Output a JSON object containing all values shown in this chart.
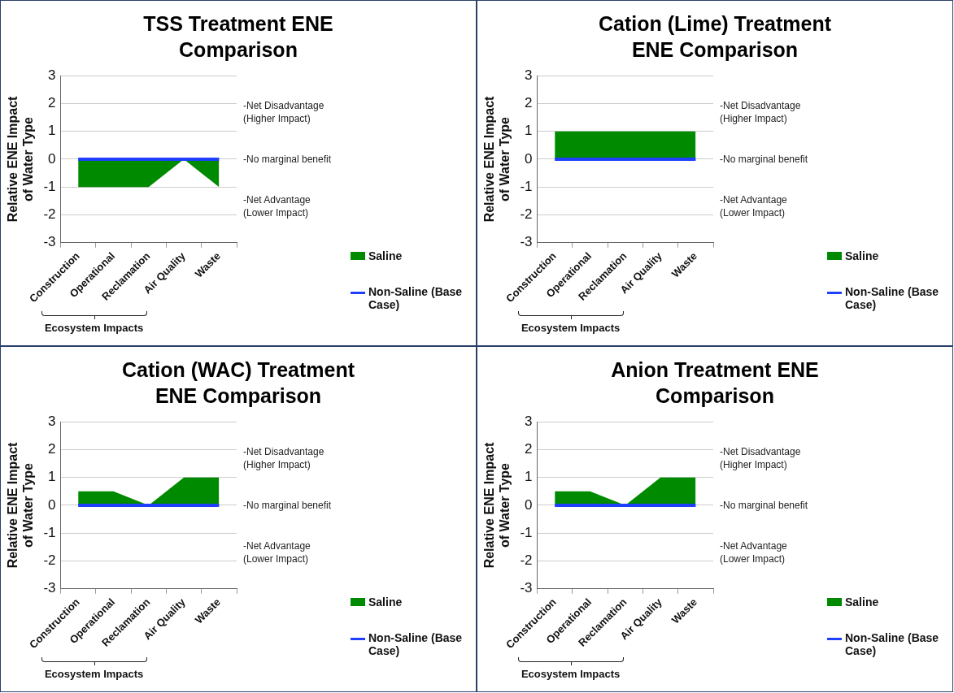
{
  "chart_data": [
    {
      "type": "area",
      "title": "TSS Treatment ENE Comparison",
      "ylabel": "Relative ENE Impact of Water Type",
      "categories": [
        "Construction",
        "Operational",
        "Reclamation",
        "Air Quality",
        "Waste"
      ],
      "series": [
        {
          "name": "Saline",
          "type": "area",
          "color": "#008a00",
          "values": [
            -1,
            -1,
            -1,
            0,
            -1
          ]
        },
        {
          "name": "Non-Saline (Base Case)",
          "type": "line",
          "color": "#1f3fff",
          "values": [
            0,
            0,
            0,
            0,
            0
          ]
        }
      ],
      "ylim": [
        -3,
        3
      ],
      "yticks": [
        -3,
        -2,
        -1,
        0,
        1,
        2,
        3
      ],
      "grid": "y",
      "legend": "right",
      "annotations": [
        "-Net Disadvantage (Higher Impact)",
        "-No marginal benefit",
        "-Net Advantage (Lower Impact)",
        "Ecosystem Impacts"
      ]
    },
    {
      "type": "area",
      "title": "Cation (Lime) Treatment ENE Comparison",
      "ylabel": "Relative ENE Impact of Water Type",
      "categories": [
        "Construction",
        "Operational",
        "Reclamation",
        "Air Quality",
        "Waste"
      ],
      "series": [
        {
          "name": "Saline",
          "type": "area",
          "color": "#008a00",
          "values": [
            1,
            1,
            1,
            1,
            1
          ]
        },
        {
          "name": "Non-Saline (Base Case)",
          "type": "line",
          "color": "#1f3fff",
          "values": [
            0,
            0,
            0,
            0,
            0
          ]
        }
      ],
      "ylim": [
        -3,
        3
      ],
      "yticks": [
        -3,
        -2,
        -1,
        0,
        1,
        2,
        3
      ],
      "grid": "y",
      "legend": "right",
      "annotations": [
        "-Net Disadvantage (Higher Impact)",
        "-No marginal benefit",
        "-Net Advantage (Lower Impact)",
        "Ecosystem Impacts"
      ]
    },
    {
      "type": "area",
      "title": "Cation (WAC) Treatment ENE Comparison",
      "ylabel": "Relative ENE Impact of Water Type",
      "categories": [
        "Construction",
        "Operational",
        "Reclamation",
        "Air Quality",
        "Waste"
      ],
      "series": [
        {
          "name": "Saline",
          "type": "area",
          "color": "#008a00",
          "values": [
            0.5,
            0.5,
            0,
            1,
            1
          ]
        },
        {
          "name": "Non-Saline (Base Case)",
          "type": "line",
          "color": "#1f3fff",
          "values": [
            0,
            0,
            0,
            0,
            0
          ]
        }
      ],
      "ylim": [
        -3,
        3
      ],
      "yticks": [
        -3,
        -2,
        -1,
        0,
        1,
        2,
        3
      ],
      "grid": "y",
      "legend": "right",
      "annotations": [
        "-Net Disadvantage (Higher Impact)",
        "-No marginal benefit",
        "-Net Advantage (Lower Impact)",
        "Ecosystem Impacts"
      ]
    },
    {
      "type": "area",
      "title": "Anion Treatment ENE Comparison",
      "ylabel": "Relative ENE Impact of Water Type",
      "categories": [
        "Construction",
        "Operational",
        "Reclamation",
        "Air Quality",
        "Waste"
      ],
      "series": [
        {
          "name": "Saline",
          "type": "area",
          "color": "#008a00",
          "values": [
            0.5,
            0.5,
            0,
            1,
            1
          ]
        },
        {
          "name": "Non-Saline (Base Case)",
          "type": "line",
          "color": "#1f3fff",
          "values": [
            0,
            0,
            0,
            0,
            0
          ]
        }
      ],
      "ylim": [
        -3,
        3
      ],
      "yticks": [
        -3,
        -2,
        -1,
        0,
        1,
        2,
        3
      ],
      "grid": "y",
      "legend": "right",
      "annotations": [
        "-Net Disadvantage (Higher Impact)",
        "-No marginal benefit",
        "-Net Advantage (Lower Impact)",
        "Ecosystem Impacts"
      ]
    }
  ]
}
